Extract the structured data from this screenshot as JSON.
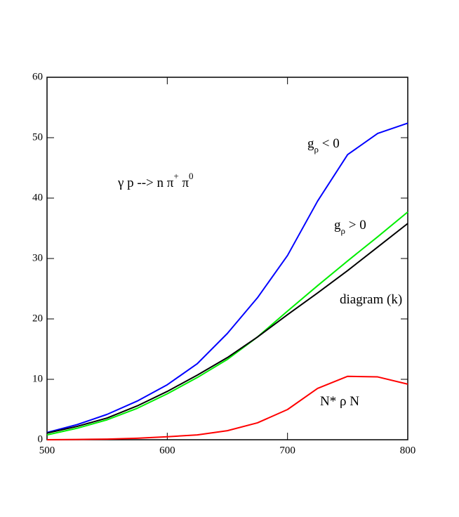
{
  "chart_data": {
    "type": "line",
    "x": [
      500,
      525,
      550,
      575,
      600,
      625,
      650,
      675,
      700,
      725,
      750,
      775,
      800
    ],
    "series": [
      {
        "color": "#0000ff",
        "values": [
          1.2,
          2.5,
          4.2,
          6.4,
          9.1,
          12.6,
          17.6,
          23.5,
          30.5,
          39.5,
          47.2,
          50.7,
          52.4
        ]
      },
      {
        "color": "#00ee00",
        "values": [
          0.8,
          1.9,
          3.3,
          5.2,
          7.6,
          10.3,
          13.3,
          17.0,
          21.3,
          25.5,
          29.6,
          33.6,
          37.7
        ]
      },
      {
        "color": "#000000",
        "values": [
          1.1,
          2.2,
          3.6,
          5.6,
          8.0,
          10.7,
          13.6,
          17.0,
          20.7,
          24.3,
          28.0,
          31.9,
          35.8
        ]
      },
      {
        "color": "#ff0000",
        "values": [
          0,
          0.05,
          0.1,
          0.25,
          0.5,
          0.8,
          1.5,
          2.8,
          5.0,
          8.5,
          10.5,
          10.4,
          9.2
        ]
      }
    ],
    "annotations": [
      [
        "γ p --> n  π",
        "+",
        " π",
        "0"
      ],
      [
        "g",
        "ρ",
        " < 0"
      ],
      [
        "g",
        "ρ",
        " > 0"
      ],
      [
        "diagram (k)"
      ],
      [
        "N* ρ  N"
      ]
    ],
    "xlim": [
      500,
      800
    ],
    "xticks": [
      500,
      600,
      700,
      800
    ],
    "ylim": [
      0,
      60
    ],
    "yticks": [
      0,
      10,
      20,
      30,
      40,
      50,
      60
    ]
  }
}
